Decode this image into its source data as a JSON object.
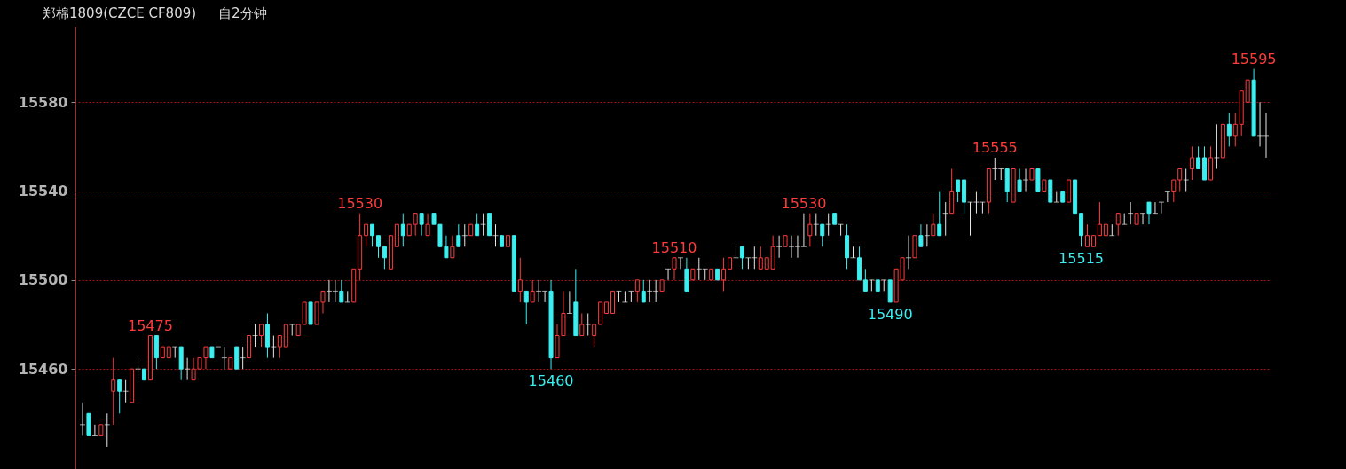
{
  "chart_data": {
    "type": "candlestick",
    "title": "郑棉1809(CZCE CF809)",
    "subtitle": "自2分钟",
    "categories": [
      null,
      null,
      null,
      null,
      null,
      null,
      null,
      null,
      null,
      null,
      null,
      null,
      null,
      null,
      null,
      null,
      null,
      null,
      null,
      null,
      null,
      null,
      null,
      null,
      null,
      null,
      null,
      null,
      null,
      null,
      null,
      null,
      null,
      null,
      null,
      null,
      null,
      null,
      null,
      null,
      null,
      null,
      null,
      null,
      null,
      null,
      null,
      null,
      null,
      null,
      null,
      null,
      null,
      null,
      null,
      null,
      null,
      null,
      null,
      null,
      null,
      null,
      null,
      null,
      null,
      null,
      null,
      null,
      null,
      null,
      null,
      null,
      null,
      null,
      null,
      null,
      null,
      null,
      null,
      null,
      null,
      null,
      null,
      null,
      null,
      null,
      null,
      null,
      null,
      null,
      null,
      null,
      null,
      null,
      null,
      null,
      null,
      null,
      null,
      null,
      null,
      null,
      null,
      null,
      null,
      null,
      null,
      null,
      null,
      null,
      null,
      null,
      null,
      null,
      null,
      null,
      null,
      null,
      null,
      null,
      null,
      null,
      null,
      null,
      null,
      null,
      null,
      null,
      null,
      null,
      null,
      null,
      null,
      null,
      null,
      null,
      null,
      null,
      null,
      null,
      null,
      null,
      null,
      null,
      null,
      null,
      null,
      null,
      null,
      null,
      null,
      null,
      null,
      null,
      null,
      null,
      null,
      null,
      null,
      null,
      null,
      null,
      null,
      null,
      null,
      null,
      null,
      null,
      null,
      null,
      null,
      null,
      null,
      null,
      null,
      null,
      null,
      null,
      null,
      null,
      null,
      null,
      null,
      null,
      null,
      null,
      null,
      null,
      null,
      null,
      null,
      null,
      null
    ],
    "ohlc": [
      [
        15435,
        15445,
        15430,
        15435
      ],
      [
        15440,
        15440,
        15430,
        15430
      ],
      [
        15430,
        15435,
        15430,
        15430
      ],
      [
        15430,
        15435,
        15430,
        15435
      ],
      [
        15435,
        15440,
        15425,
        15435
      ],
      [
        15450,
        15465,
        15435,
        15455
      ],
      [
        15455,
        15455,
        15440,
        15450
      ],
      [
        15450,
        15455,
        15445,
        15450
      ],
      [
        15445,
        15460,
        15445,
        15460
      ],
      [
        15460,
        15465,
        15455,
        15460
      ],
      [
        15460,
        15460,
        15455,
        15455
      ],
      [
        15455,
        15475,
        15455,
        15475
      ],
      [
        15475,
        15475,
        15460,
        15465
      ],
      [
        15465,
        15470,
        15465,
        15470
      ],
      [
        15465,
        15470,
        15465,
        15470
      ],
      [
        15470,
        15470,
        15465,
        15470
      ],
      [
        15470,
        15470,
        15455,
        15460
      ],
      [
        15460,
        15465,
        15455,
        15460
      ],
      [
        15455,
        15465,
        15455,
        15460
      ],
      [
        15460,
        15465,
        15460,
        15465
      ],
      [
        15465,
        15470,
        15460,
        15470
      ],
      [
        15470,
        15470,
        15465,
        15465
      ],
      [
        15470,
        15470,
        15470,
        15470
      ],
      [
        15465,
        15470,
        15460,
        15465
      ],
      [
        15460,
        15465,
        15460,
        15465
      ],
      [
        15470,
        15470,
        15460,
        15460
      ],
      [
        15465,
        15470,
        15460,
        15465
      ],
      [
        15465,
        15475,
        15465,
        15475
      ],
      [
        15475,
        15480,
        15470,
        15475
      ],
      [
        15475,
        15480,
        15470,
        15480
      ],
      [
        15480,
        15485,
        15465,
        15470
      ],
      [
        15470,
        15475,
        15465,
        15470
      ],
      [
        15470,
        15475,
        15465,
        15475
      ],
      [
        15470,
        15480,
        15470,
        15480
      ],
      [
        15480,
        15480,
        15475,
        15480
      ],
      [
        15475,
        15480,
        15475,
        15480
      ],
      [
        15480,
        15490,
        15480,
        15490
      ],
      [
        15490,
        15490,
        15480,
        15480
      ],
      [
        15480,
        15490,
        15480,
        15490
      ],
      [
        15490,
        15495,
        15485,
        15495
      ],
      [
        15495,
        15500,
        15490,
        15495
      ],
      [
        15495,
        15500,
        15490,
        15495
      ],
      [
        15495,
        15500,
        15490,
        15490
      ],
      [
        15490,
        15495,
        15490,
        15490
      ],
      [
        15490,
        15505,
        15490,
        15505
      ],
      [
        15505,
        15530,
        15500,
        15520
      ],
      [
        15520,
        15525,
        15515,
        15525
      ],
      [
        15525,
        15525,
        15515,
        15520
      ],
      [
        15520,
        15520,
        15510,
        15515
      ],
      [
        15515,
        15515,
        15505,
        15510
      ],
      [
        15505,
        15520,
        15505,
        15520
      ],
      [
        15515,
        15525,
        15515,
        15525
      ],
      [
        15525,
        15530,
        15515,
        15520
      ],
      [
        15520,
        15525,
        15520,
        15525
      ],
      [
        15525,
        15530,
        15520,
        15530
      ],
      [
        15530,
        15530,
        15520,
        15525
      ],
      [
        15520,
        15530,
        15520,
        15525
      ],
      [
        15530,
        15530,
        15525,
        15525
      ],
      [
        15525,
        15525,
        15515,
        15515
      ],
      [
        15515,
        15520,
        15510,
        15510
      ],
      [
        15510,
        15520,
        15510,
        15515
      ],
      [
        15520,
        15525,
        15515,
        15515
      ],
      [
        15520,
        15525,
        15515,
        15520
      ],
      [
        15520,
        15525,
        15520,
        15525
      ],
      [
        15525,
        15530,
        15520,
        15520
      ],
      [
        15525,
        15530,
        15520,
        15525
      ],
      [
        15530,
        15530,
        15520,
        15520
      ],
      [
        15520,
        15525,
        15515,
        15520
      ],
      [
        15520,
        15520,
        15515,
        15515
      ],
      [
        15515,
        15520,
        15515,
        15520
      ],
      [
        15520,
        15520,
        15495,
        15495
      ],
      [
        15495,
        15510,
        15490,
        15500
      ],
      [
        15495,
        15495,
        15480,
        15490
      ],
      [
        15490,
        15500,
        15490,
        15495
      ],
      [
        15495,
        15500,
        15490,
        15495
      ],
      [
        15495,
        15495,
        15490,
        15495
      ],
      [
        15495,
        15500,
        15460,
        15465
      ],
      [
        15465,
        15480,
        15465,
        15475
      ],
      [
        15475,
        15495,
        15475,
        15485
      ],
      [
        15485,
        15495,
        15485,
        15485
      ],
      [
        15490,
        15505,
        15475,
        15475
      ],
      [
        15475,
        15485,
        15475,
        15480
      ],
      [
        15480,
        15485,
        15475,
        15480
      ],
      [
        15475,
        15480,
        15470,
        15480
      ],
      [
        15480,
        15490,
        15480,
        15490
      ],
      [
        15485,
        15490,
        15485,
        15490
      ],
      [
        15485,
        15495,
        15485,
        15495
      ],
      [
        15495,
        15495,
        15490,
        15495
      ],
      [
        15490,
        15495,
        15490,
        15490
      ],
      [
        15495,
        15495,
        15490,
        15495
      ],
      [
        15495,
        15500,
        15490,
        15500
      ],
      [
        15495,
        15500,
        15490,
        15490
      ],
      [
        15495,
        15500,
        15490,
        15495
      ],
      [
        15495,
        15500,
        15490,
        15495
      ],
      [
        15495,
        15500,
        15495,
        15500
      ],
      [
        15505,
        15505,
        15500,
        15505
      ],
      [
        15505,
        15510,
        15500,
        15510
      ],
      [
        15510,
        15510,
        15505,
        15510
      ],
      [
        15505,
        15510,
        15495,
        15495
      ],
      [
        15500,
        15505,
        15500,
        15505
      ],
      [
        15505,
        15510,
        15500,
        15505
      ],
      [
        15505,
        15505,
        15500,
        15505
      ],
      [
        15500,
        15505,
        15500,
        15505
      ],
      [
        15505,
        15505,
        15500,
        15500
      ],
      [
        15500,
        15510,
        15495,
        15505
      ],
      [
        15505,
        15510,
        15505,
        15510
      ],
      [
        15510,
        15515,
        15510,
        15510
      ],
      [
        15515,
        15515,
        15505,
        15510
      ],
      [
        15510,
        15510,
        15505,
        15510
      ],
      [
        15510,
        15515,
        15505,
        15510
      ],
      [
        15505,
        15515,
        15505,
        15510
      ],
      [
        15505,
        15510,
        15505,
        15510
      ],
      [
        15505,
        15520,
        15505,
        15515
      ],
      [
        15515,
        15520,
        15510,
        15515
      ],
      [
        15515,
        15520,
        15515,
        15520
      ],
      [
        15515,
        15520,
        15510,
        15515
      ],
      [
        15515,
        15520,
        15510,
        15515
      ],
      [
        15515,
        15530,
        15515,
        15515
      ],
      [
        15520,
        15530,
        15515,
        15525
      ],
      [
        15525,
        15530,
        15520,
        15525
      ],
      [
        15525,
        15525,
        15515,
        15520
      ],
      [
        15525,
        15530,
        15520,
        15525
      ],
      [
        15530,
        15530,
        15525,
        15525
      ],
      [
        15525,
        15525,
        15520,
        15525
      ],
      [
        15520,
        15525,
        15505,
        15510
      ],
      [
        15510,
        15515,
        15510,
        15510
      ],
      [
        15510,
        15515,
        15500,
        15500
      ],
      [
        15500,
        15505,
        15495,
        15495
      ],
      [
        15500,
        15500,
        15495,
        15500
      ],
      [
        15500,
        15500,
        15495,
        15495
      ],
      [
        15500,
        15500,
        15495,
        15500
      ],
      [
        15500,
        15500,
        15490,
        15490
      ],
      [
        15490,
        15505,
        15490,
        15505
      ],
      [
        15500,
        15510,
        15500,
        15510
      ],
      [
        15510,
        15520,
        15505,
        15510
      ],
      [
        15510,
        15520,
        15510,
        15520
      ],
      [
        15520,
        15525,
        15515,
        15515
      ],
      [
        15520,
        15525,
        15515,
        15520
      ],
      [
        15520,
        15530,
        15520,
        15525
      ],
      [
        15525,
        15540,
        15520,
        15520
      ],
      [
        15530,
        15535,
        15520,
        15530
      ],
      [
        15530,
        15550,
        15530,
        15540
      ],
      [
        15545,
        15545,
        15535,
        15540
      ],
      [
        15545,
        15545,
        15530,
        15535
      ],
      [
        15535,
        15535,
        15520,
        15535
      ],
      [
        15535,
        15540,
        15530,
        15535
      ],
      [
        15535,
        15535,
        15530,
        15535
      ],
      [
        15535,
        15550,
        15530,
        15550
      ],
      [
        15550,
        15555,
        15545,
        15550
      ],
      [
        15550,
        15550,
        15545,
        15550
      ],
      [
        15550,
        15550,
        15535,
        15540
      ],
      [
        15535,
        15550,
        15535,
        15550
      ],
      [
        15545,
        15550,
        15540,
        15540
      ],
      [
        15545,
        15550,
        15540,
        15545
      ],
      [
        15545,
        15550,
        15545,
        15550
      ],
      [
        15550,
        15550,
        15540,
        15540
      ],
      [
        15540,
        15545,
        15540,
        15545
      ],
      [
        15545,
        15545,
        15535,
        15535
      ],
      [
        15535,
        15540,
        15535,
        15535
      ],
      [
        15540,
        15540,
        15535,
        15535
      ],
      [
        15535,
        15545,
        15535,
        15545
      ],
      [
        15545,
        15545,
        15530,
        15530
      ],
      [
        15530,
        15530,
        15515,
        15520
      ],
      [
        15515,
        15525,
        15515,
        15520
      ],
      [
        15515,
        15520,
        15515,
        15520
      ],
      [
        15520,
        15535,
        15520,
        15525
      ],
      [
        15520,
        15525,
        15520,
        15525
      ],
      [
        15520,
        15525,
        15520,
        15520
      ],
      [
        15525,
        15530,
        15520,
        15530
      ],
      [
        15525,
        15530,
        15525,
        15525
      ],
      [
        15530,
        15535,
        15525,
        15530
      ],
      [
        15525,
        15530,
        15525,
        15530
      ],
      [
        15530,
        15530,
        15525,
        15530
      ],
      [
        15535,
        15535,
        15525,
        15530
      ],
      [
        15530,
        15535,
        15530,
        15530
      ],
      [
        15535,
        15535,
        15530,
        15535
      ],
      [
        15540,
        15540,
        15535,
        15540
      ],
      [
        15540,
        15545,
        15535,
        15545
      ],
      [
        15545,
        15550,
        15540,
        15550
      ],
      [
        15545,
        15550,
        15540,
        15545
      ],
      [
        15550,
        15560,
        15545,
        15555
      ],
      [
        15555,
        15560,
        15550,
        15550
      ],
      [
        15555,
        15560,
        15545,
        15545
      ],
      [
        15545,
        15560,
        15545,
        15555
      ],
      [
        15555,
        15570,
        15550,
        15555
      ],
      [
        15555,
        15570,
        15555,
        15570
      ],
      [
        15570,
        15575,
        15560,
        15565
      ],
      [
        15565,
        15575,
        15560,
        15570
      ],
      [
        15570,
        15585,
        15565,
        15585
      ],
      [
        15580,
        15590,
        15580,
        15590
      ],
      [
        15590,
        15595,
        15565,
        15565
      ],
      [
        15565,
        15580,
        15560,
        15565
      ],
      [
        15565,
        15575,
        15555,
        15565
      ]
    ],
    "ylim": [
      15415,
      15614
    ],
    "yticks": [
      15460,
      15500,
      15540,
      15580
    ],
    "grid": "y",
    "tick_labels": "y",
    "annotations": [
      {
        "text": "15475",
        "y": 15475
      },
      {
        "text": "15530",
        "y": 15530
      },
      {
        "text": "15460",
        "y": 15460
      },
      {
        "text": "15510",
        "y": 15510
      },
      {
        "text": "15530",
        "y": 15530
      },
      {
        "text": "15490",
        "y": 15490
      },
      {
        "text": "15555",
        "y": 15555
      },
      {
        "text": "15515",
        "y": 15515
      },
      {
        "text": "15595",
        "y": 15595
      }
    ]
  }
}
